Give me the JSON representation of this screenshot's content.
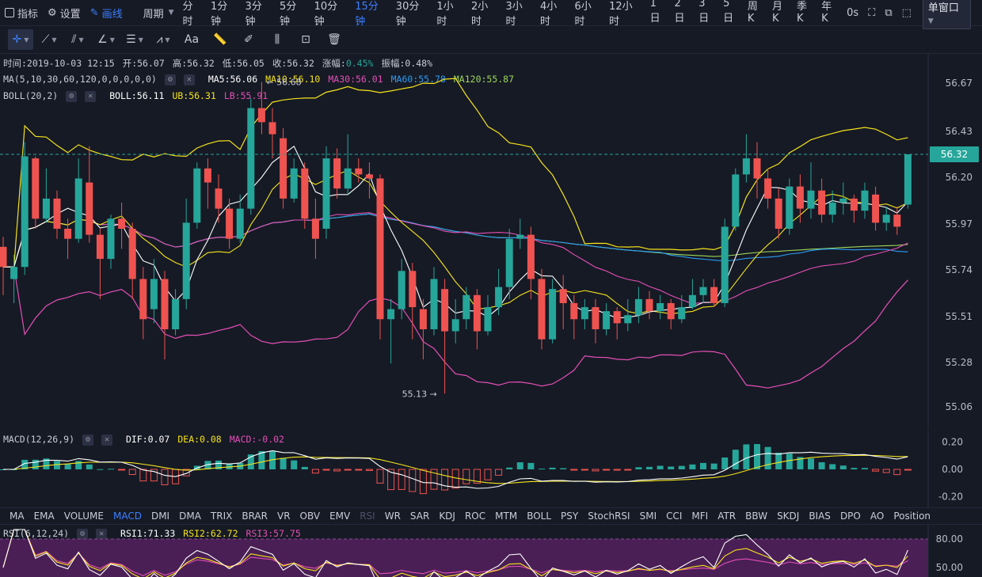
{
  "toolbar": {
    "indicators": "指标",
    "settings": "设置",
    "draw": "画线",
    "period": "周期",
    "periods": [
      "分时",
      "1分钟",
      "3分钟",
      "5分钟",
      "10分钟",
      "15分钟",
      "30分钟",
      "1小时",
      "2小时",
      "3小时",
      "4小时",
      "6小时",
      "12小时",
      "1日",
      "2日",
      "3日",
      "5日",
      "周K",
      "月K",
      "季K",
      "年K"
    ],
    "active_period": "15分钟",
    "interval": "0s",
    "window": "单窗口"
  },
  "drawtools": [
    "crosshair-icon",
    "trend-line-icon",
    "parallel-line-icon",
    "angle-icon",
    "horizontal-lines-icon",
    "wave-icon",
    "text-icon",
    "ruler-icon",
    "brush-icon",
    "measure-icon",
    "lock-icon",
    "trash-icon"
  ],
  "ohlc": {
    "time": "时间:2019-10-03 12:15",
    "open": "开:56.07",
    "high": "高:56.32",
    "low": "低:56.05",
    "close": "收:56.32",
    "change_label": "涨幅:",
    "change": "0.45%",
    "amp_label": "振幅:",
    "amp": "0.48%"
  },
  "ma": {
    "label": "MA(5,10,30,60,120,0,0,0,0,0)",
    "ma5": "MA5:56.06",
    "ma10": "MA10:56.10",
    "ma30": "MA30:56.01",
    "ma60": "MA60:55.78",
    "ma120": "MA120:55.87"
  },
  "boll": {
    "label": "BOLL(20,2)",
    "boll": "BOLL:56.11",
    "ub": "UB:56.31",
    "lb": "LB:55.91"
  },
  "macd": {
    "label": "MACD(12,26,9)",
    "dif": "DIF:0.07",
    "dea": "DEA:0.08",
    "macd": "MACD:-0.02"
  },
  "rsi": {
    "label": "RSI(6,12,24)",
    "rsi1": "RSI1:71.33",
    "rsi2": "RSI2:62.72",
    "rsi3": "RSI3:57.75"
  },
  "annotations": {
    "high": "← 56.68",
    "low": "55.13 →"
  },
  "price_axis": [
    "56.67",
    "56.43",
    "56.20",
    "55.97",
    "55.74",
    "55.51",
    "55.28",
    "55.06"
  ],
  "current_price": "56.32",
  "macd_axis": [
    "0.20",
    "0.00",
    "-0.20"
  ],
  "rsi_axis": [
    "80.00",
    "50.00"
  ],
  "indicator_tabs": [
    "MA",
    "EMA",
    "VOLUME",
    "MACD",
    "DMI",
    "DMA",
    "TRIX",
    "BRAR",
    "VR",
    "OBV",
    "EMV",
    "RSI",
    "WR",
    "SAR",
    "KDJ",
    "ROC",
    "MTM",
    "BOLL",
    "PSY",
    "StochRSI",
    "SMI",
    "CCI",
    "MFI",
    "ATR",
    "BBW",
    "SKDJ",
    "BIAS",
    "DPO",
    "AO",
    "Position"
  ],
  "active_tab": "MACD",
  "disabled_tab": "RSI",
  "colors": {
    "up": "#26a69a",
    "down": "#ef5350",
    "ma5": "#ffffff",
    "ma10": "#f5e31c",
    "ma30": "#e44fb6",
    "ma60": "#2a9df4",
    "ma120": "#9ed85a",
    "boll_ub": "#f5e31c",
    "boll_lb": "#e44fb6",
    "accent": "#3d7fff"
  },
  "chart_data": {
    "type": "candlestick",
    "y_range": [
      54.95,
      56.82
    ],
    "candles": [
      [
        55.86,
        55.76,
        55.91,
        55.62
      ],
      [
        55.7,
        55.76,
        55.82,
        55.58
      ],
      [
        55.76,
        56.31,
        56.38,
        55.72
      ],
      [
        56.3,
        56.0,
        56.31,
        55.95
      ],
      [
        56.0,
        56.1,
        56.25,
        55.98
      ],
      [
        56.1,
        55.95,
        56.14,
        55.9
      ],
      [
        55.95,
        55.9,
        56.0,
        55.8
      ],
      [
        55.9,
        56.2,
        56.3,
        55.88
      ],
      [
        56.18,
        55.92,
        56.36,
        55.88
      ],
      [
        55.92,
        55.8,
        55.95,
        55.6
      ],
      [
        55.8,
        56.0,
        56.02,
        55.75
      ],
      [
        56.0,
        55.95,
        56.08,
        55.85
      ],
      [
        55.95,
        55.7,
        55.98,
        55.6
      ],
      [
        55.7,
        55.5,
        55.76,
        55.4
      ],
      [
        55.55,
        55.7,
        55.8,
        55.48
      ],
      [
        55.7,
        55.45,
        55.74,
        55.3
      ],
      [
        55.45,
        55.6,
        55.65,
        55.42
      ],
      [
        55.6,
        55.98,
        56.1,
        55.55
      ],
      [
        55.98,
        56.25,
        56.28,
        55.95
      ],
      [
        56.25,
        56.18,
        56.3,
        56.05
      ],
      [
        56.15,
        56.05,
        56.22,
        55.98
      ],
      [
        56.05,
        55.9,
        56.1,
        55.85
      ],
      [
        55.9,
        56.05,
        56.12,
        55.88
      ],
      [
        56.05,
        56.55,
        56.6,
        56.02
      ],
      [
        56.55,
        56.48,
        56.68,
        56.42
      ],
      [
        56.48,
        56.42,
        56.55,
        56.3
      ],
      [
        56.4,
        56.1,
        56.45,
        56.05
      ],
      [
        56.1,
        56.25,
        56.3,
        56.08
      ],
      [
        56.25,
        56.0,
        56.28,
        55.95
      ],
      [
        56.0,
        55.9,
        56.1,
        55.8
      ],
      [
        55.95,
        56.3,
        56.36,
        55.9
      ],
      [
        56.3,
        56.15,
        56.35,
        56.1
      ],
      [
        56.15,
        56.25,
        56.42,
        56.12
      ],
      [
        56.25,
        56.22,
        56.3,
        56.18
      ],
      [
        56.22,
        56.2,
        56.28,
        56.1
      ],
      [
        56.2,
        55.5,
        56.22,
        55.4
      ],
      [
        55.5,
        55.55,
        55.6,
        55.28
      ],
      [
        55.55,
        55.74,
        55.8,
        55.5
      ],
      [
        55.74,
        55.56,
        55.78,
        55.4
      ],
      [
        55.55,
        55.45,
        55.6,
        55.3
      ],
      [
        55.45,
        55.7,
        55.76,
        55.42
      ],
      [
        55.65,
        55.44,
        55.7,
        55.13
      ],
      [
        55.44,
        55.5,
        55.6,
        55.38
      ],
      [
        55.5,
        55.62,
        55.66,
        55.45
      ],
      [
        55.62,
        55.44,
        55.65,
        55.35
      ],
      [
        55.44,
        55.56,
        55.62,
        55.42
      ],
      [
        55.56,
        55.66,
        55.75,
        55.52
      ],
      [
        55.66,
        55.9,
        55.95,
        55.6
      ],
      [
        55.9,
        55.92,
        56.0,
        55.85
      ],
      [
        55.92,
        55.7,
        55.96,
        55.6
      ],
      [
        55.7,
        55.4,
        55.75,
        55.35
      ],
      [
        55.4,
        55.65,
        55.7,
        55.38
      ],
      [
        55.65,
        55.58,
        55.72,
        55.45
      ],
      [
        55.58,
        55.5,
        55.62,
        55.4
      ],
      [
        55.5,
        55.56,
        55.6,
        55.45
      ],
      [
        55.56,
        55.45,
        55.6,
        55.38
      ],
      [
        55.45,
        55.54,
        55.58,
        55.42
      ],
      [
        55.54,
        55.48,
        55.56,
        55.4
      ],
      [
        55.48,
        55.52,
        55.6,
        55.44
      ],
      [
        55.52,
        55.6,
        55.66,
        55.48
      ],
      [
        55.6,
        55.54,
        55.64,
        55.5
      ],
      [
        55.54,
        55.58,
        55.62,
        55.5
      ],
      [
        55.58,
        55.5,
        55.6,
        55.45
      ],
      [
        55.5,
        55.56,
        55.62,
        55.48
      ],
      [
        55.56,
        55.62,
        55.7,
        55.55
      ],
      [
        55.62,
        55.66,
        55.7,
        55.58
      ],
      [
        55.66,
        55.58,
        55.7,
        55.56
      ],
      [
        55.58,
        55.96,
        56.0,
        55.56
      ],
      [
        55.96,
        56.22,
        56.25,
        55.94
      ],
      [
        56.22,
        56.3,
        56.42,
        56.18
      ],
      [
        56.3,
        56.2,
        56.38,
        56.1
      ],
      [
        56.2,
        56.1,
        56.25,
        56.05
      ],
      [
        56.1,
        55.95,
        56.15,
        55.9
      ],
      [
        55.95,
        56.16,
        56.2,
        55.92
      ],
      [
        56.16,
        56.05,
        56.22,
        55.98
      ],
      [
        56.05,
        56.14,
        56.28,
        56.0
      ],
      [
        56.14,
        56.02,
        56.2,
        55.98
      ],
      [
        56.02,
        56.08,
        56.14,
        55.98
      ],
      [
        56.08,
        56.1,
        56.18,
        56.02
      ],
      [
        56.1,
        56.04,
        56.12,
        55.98
      ],
      [
        56.04,
        56.14,
        56.18,
        56.0
      ],
      [
        56.12,
        55.98,
        56.16,
        55.94
      ],
      [
        55.98,
        56.02,
        56.06,
        55.94
      ],
      [
        56.02,
        55.96,
        56.06,
        55.92
      ],
      [
        56.07,
        56.32,
        56.32,
        56.05
      ]
    ],
    "macd_range": [
      -0.28,
      0.28
    ],
    "rsi_range": [
      40,
      95
    ]
  }
}
